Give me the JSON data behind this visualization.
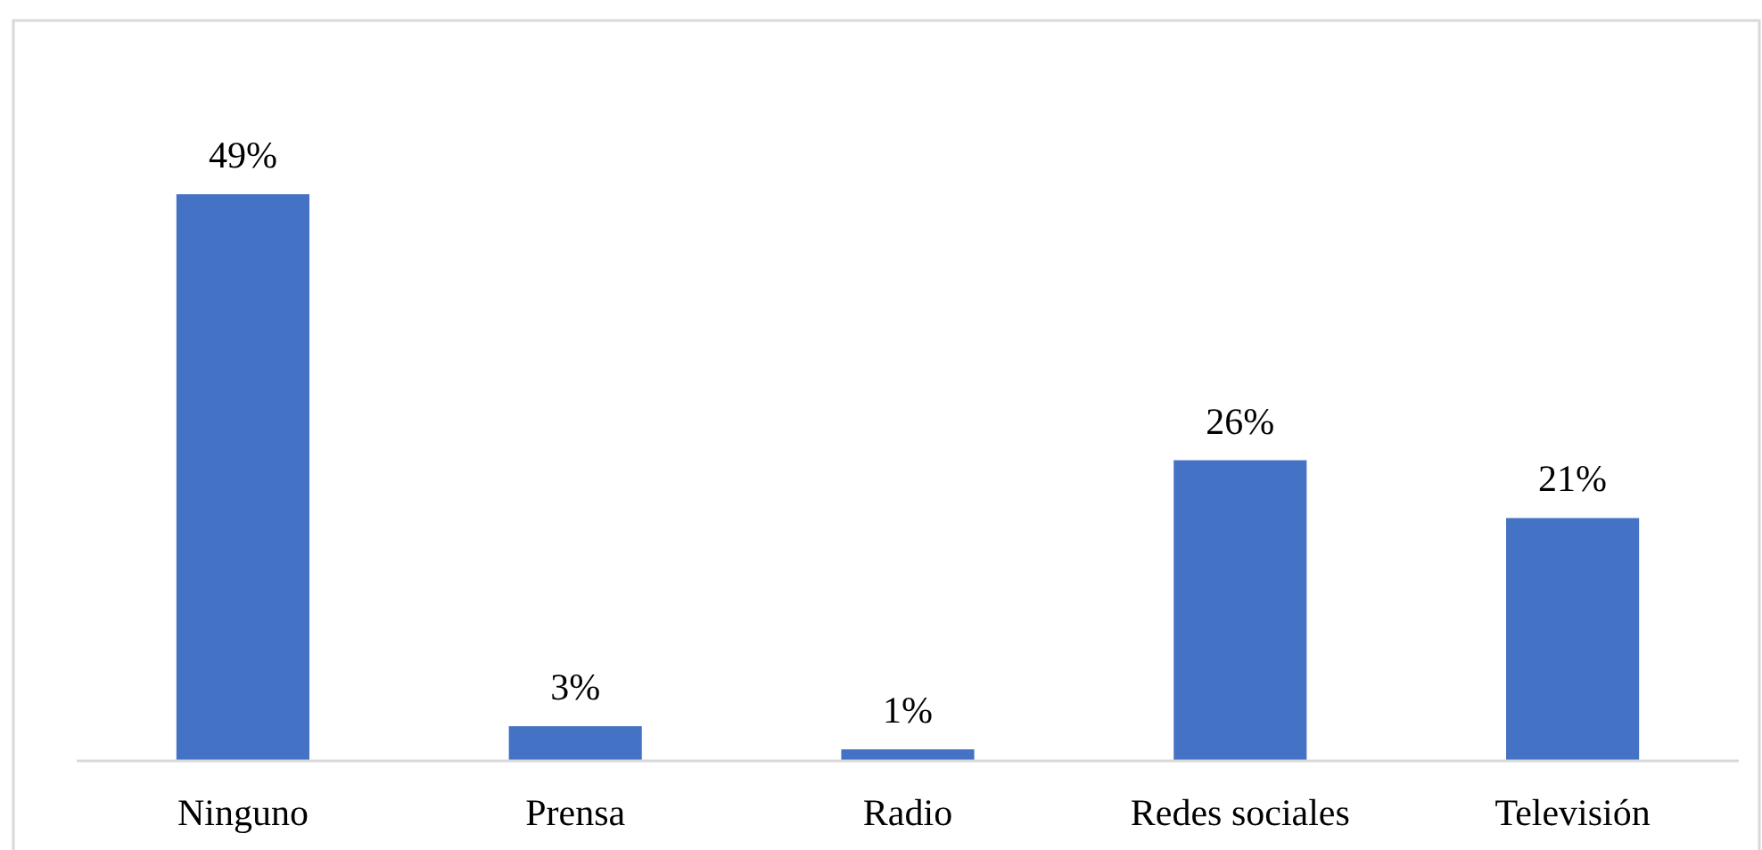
{
  "chart_data": {
    "type": "bar",
    "categories": [
      "Ninguno",
      "Prensa",
      "Radio",
      "Redes sociales",
      "Televisión"
    ],
    "values": [
      49,
      3,
      1,
      26,
      21
    ],
    "color": "#4472c4",
    "value_labels": [
      "49%",
      "3%",
      "1%",
      "26%",
      "21%"
    ]
  }
}
